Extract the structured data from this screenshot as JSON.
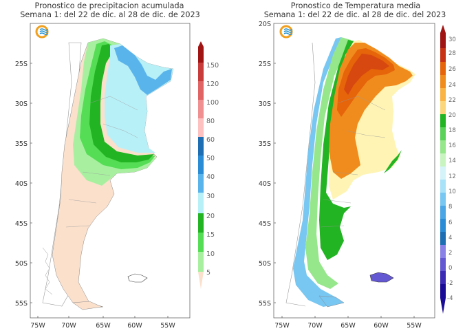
{
  "left": {
    "title_line1": "Pronostico de precipitacion acumulada",
    "title_line2": "Semana 1: del 22 de dic. al 28 de dic. de 2023",
    "lat_labels": [
      "25S",
      "30S",
      "35S",
      "40S",
      "45S",
      "50S",
      "55S"
    ],
    "lon_labels": [
      "75W",
      "70W",
      "65W",
      "60W",
      "55W"
    ],
    "legend_labels": [
      "150",
      "120",
      "100",
      "80",
      "60",
      "50",
      "40",
      "30",
      "20",
      "15",
      "10",
      "5"
    ],
    "legend_colors": [
      "#fbe0cc",
      "#a8f0a0",
      "#55dd55",
      "#22b422",
      "#b8f0f8",
      "#8adcf8",
      "#5ab4ec",
      "#2a8cd4",
      "#1e6eb4",
      "#ffc0c0",
      "#f09090",
      "#e06464",
      "#c83c3c",
      "#a01414"
    ],
    "logo": "smn-logo-icon"
  },
  "right": {
    "title_line1": "Pronostico de Temperatura media",
    "title_line2": "Semana 1: del 22 de dic. al 28 de dic. del 2023",
    "lat_labels": [
      "20S",
      "25S",
      "30S",
      "35S",
      "40S",
      "45S",
      "50S",
      "55S"
    ],
    "lon_labels": [
      "75W",
      "70W",
      "65W",
      "60W",
      "55W"
    ],
    "legend_labels": [
      "30",
      "28",
      "26",
      "24",
      "22",
      "20",
      "18",
      "16",
      "14",
      "12",
      "10",
      "8",
      "6",
      "4",
      "2",
      "0",
      "-2",
      "-4"
    ],
    "legend_colors": [
      "#1a0c96",
      "#3a2ab4",
      "#6458d2",
      "#8a82e6",
      "#1e6eb4",
      "#2a8cd4",
      "#4aa6e4",
      "#78c6f2",
      "#a8e2f8",
      "#d4f4fa",
      "#c8f4c0",
      "#96e68c",
      "#5ad25a",
      "#22b422",
      "#fff4b4",
      "#fcd67a",
      "#fab446",
      "#f08c1e",
      "#e6640a",
      "#c83214",
      "#a01414"
    ],
    "logo": "smn-logo-icon"
  }
}
